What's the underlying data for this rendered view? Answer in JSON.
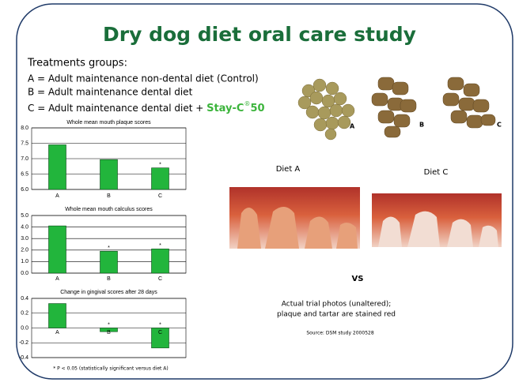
{
  "title": "Dry dog diet oral care study",
  "treatments": {
    "heading": "Treatments groups:",
    "lines": [
      "A = Adult maintenance non-dental diet (Control)",
      "B = Adult maintenance dental diet",
      "C = Adult maintenance dental diet + "
    ],
    "product": "Stay-C",
    "product_sup": "®",
    "product_suffix": "50"
  },
  "kibble_labels": [
    "A",
    "B",
    "C"
  ],
  "diet_labels": [
    "Diet A",
    "Diet C"
  ],
  "vs": "VS",
  "caption": [
    "Actual trial photos (unaltered);",
    "plaque and tartar are stained red"
  ],
  "source": "Source:  DSM study 2000528",
  "footnote": "* P < 0.05 (statistically significant versus diet A)",
  "chart_data": [
    {
      "type": "bar",
      "title": "Whole mean mouth plaque scores",
      "categories": [
        "A",
        "B",
        "C"
      ],
      "values": [
        7.45,
        6.97,
        6.7
      ],
      "annotations": [
        null,
        null,
        "*"
      ],
      "color": "#22b53c",
      "ylim": [
        6,
        8
      ],
      "yticks": [
        {
          "value": 6,
          "label": "6.0"
        },
        {
          "value": 6.5,
          "label": "6.5"
        },
        {
          "value": 7,
          "label": "7.0"
        },
        {
          "value": 7.5,
          "label": "7.5"
        },
        {
          "value": 8,
          "label": "8.0"
        }
      ],
      "grid": true
    },
    {
      "type": "bar",
      "title": "Whole mean mouth calculus scores",
      "categories": [
        "A",
        "B",
        "C"
      ],
      "values": [
        4.1,
        1.9,
        2.1
      ],
      "annotations": [
        null,
        "*",
        "*"
      ],
      "color": "#22b53c",
      "ylim": [
        0,
        5
      ],
      "yticks": [
        {
          "value": 0,
          "label": "0.0"
        },
        {
          "value": 1,
          "label": "1.0"
        },
        {
          "value": 2,
          "label": "2.0"
        },
        {
          "value": 3,
          "label": "3.0"
        },
        {
          "value": 4,
          "label": "4.0"
        },
        {
          "value": 5,
          "label": "5.0"
        }
      ],
      "grid": true
    },
    {
      "type": "bar",
      "title": "Change in gingival scores after 28 days",
      "categories": [
        "A",
        "B",
        "C"
      ],
      "values": [
        0.33,
        -0.05,
        -0.27
      ],
      "annotations": [
        null,
        "*",
        "*"
      ],
      "color": "#22b53c",
      "ylim": [
        -0.4,
        0.4
      ],
      "yticks": [
        -0.4,
        -0.2,
        {
          "value": 0,
          "label": "0.0"
        },
        0.2,
        0.4
      ],
      "grid": true
    }
  ]
}
